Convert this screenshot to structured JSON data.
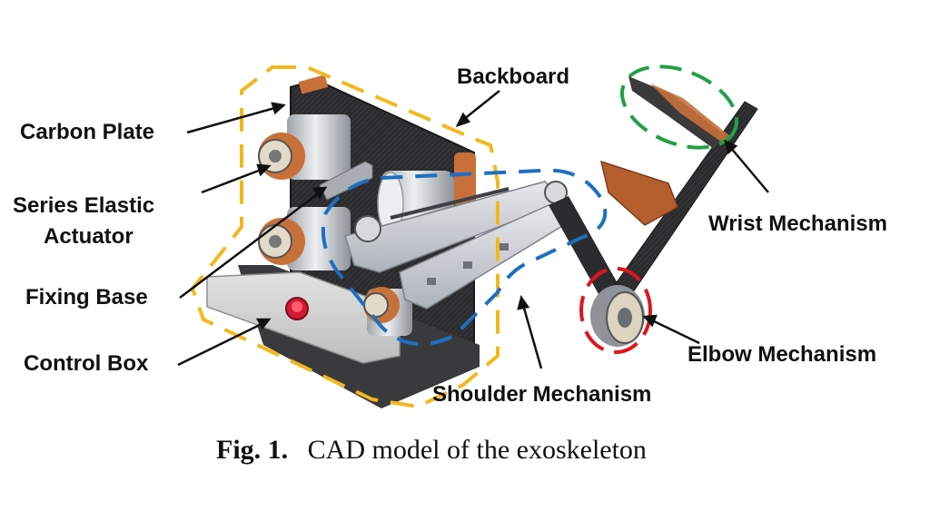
{
  "labels": {
    "backboard": "Backboard",
    "carbon_plate": "Carbon Plate",
    "sea_line1": "Series Elastic",
    "sea_line2": "Actuator",
    "fixing_base": "Fixing Base",
    "control_box": "Control Box",
    "shoulder": "Shoulder Mechanism",
    "elbow": "Elbow Mechanism",
    "wrist": "Wrist Mechanism"
  },
  "caption": {
    "number": "Fig. 1.",
    "text": "CAD model of the exoskeleton"
  },
  "colors": {
    "backboard_outline": "#f2b81d",
    "shoulder_outline": "#1f6fc0",
    "elbow_outline": "#e0141d",
    "wrist_outline": "#22a046",
    "copper": "#c8703a",
    "carbon": "#2a2a2c",
    "aluminum": "#c9ccd2"
  }
}
